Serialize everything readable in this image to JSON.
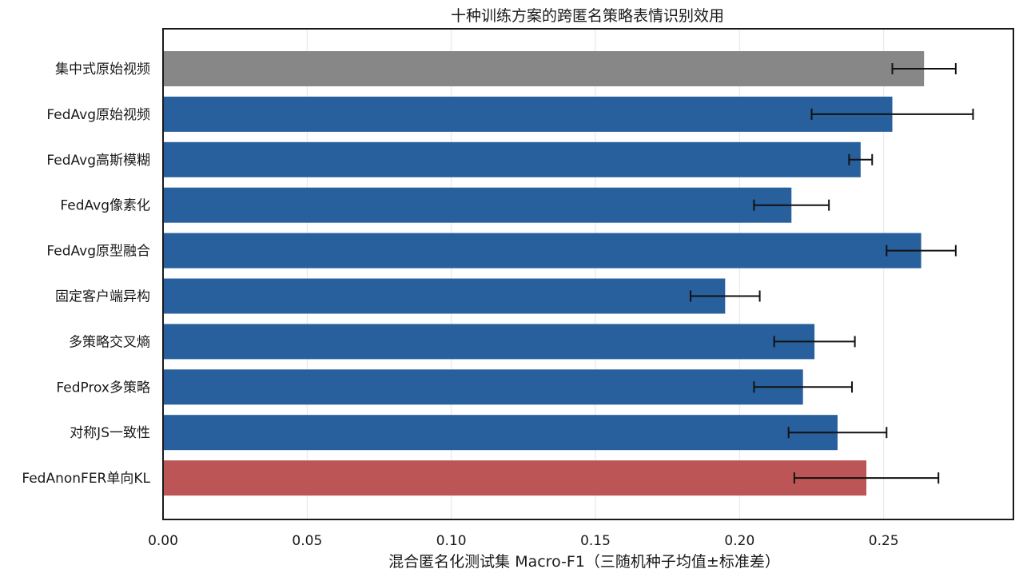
{
  "chart_data": {
    "type": "bar",
    "orientation": "horizontal",
    "title": "十种训练方案的跨匿名策略表情识别效用",
    "xlabel": "混合匿名化测试集 Macro-F1（三随机种子均值±标准差）",
    "ylabel": "",
    "xlim": [
      0.0,
      0.295
    ],
    "xticks": [
      0.0,
      0.05,
      0.1,
      0.15,
      0.2,
      0.25
    ],
    "xtick_labels": [
      "0.00",
      "0.05",
      "0.10",
      "0.15",
      "0.20",
      "0.25"
    ],
    "grid": "vertical",
    "legend": "none",
    "categories": [
      "集中式原始视频",
      "FedAvg原始视频",
      "FedAvg高斯模糊",
      "FedAvg像素化",
      "FedAvg原型融合",
      "固定客户端异构",
      "多策略交叉熵",
      "FedProx多策略",
      "对称JS一致性",
      "FedAnonFER单向KL"
    ],
    "values": [
      0.264,
      0.253,
      0.242,
      0.218,
      0.263,
      0.195,
      0.226,
      0.222,
      0.234,
      0.244
    ],
    "errors": [
      0.011,
      0.028,
      0.004,
      0.013,
      0.012,
      0.012,
      0.014,
      0.017,
      0.017,
      0.025
    ],
    "colors": [
      "#878787",
      "#27609c",
      "#27609c",
      "#27609c",
      "#27609c",
      "#27609c",
      "#27609c",
      "#27609c",
      "#27609c",
      "#bc5656"
    ]
  }
}
